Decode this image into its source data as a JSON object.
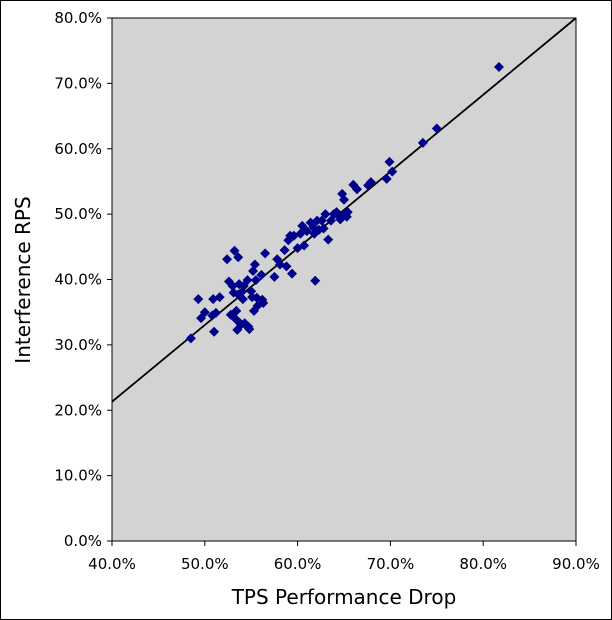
{
  "chart_data": {
    "type": "scatter",
    "title": "",
    "xlabel": "TPS Performance Drop",
    "ylabel": "Interference RPS",
    "xlim": [
      0.4,
      0.9
    ],
    "ylim": [
      0.0,
      0.8
    ],
    "x_ticks": [
      0.4,
      0.5,
      0.6,
      0.7,
      0.8,
      0.9
    ],
    "y_ticks": [
      0.0,
      0.1,
      0.2,
      0.3,
      0.4,
      0.5,
      0.6,
      0.7,
      0.8
    ],
    "x_tick_labels": [
      "40.0%",
      "50.0%",
      "60.0%",
      "70.0%",
      "80.0%",
      "90.0%"
    ],
    "y_tick_labels": [
      "0.0%",
      "10.0%",
      "20.0%",
      "30.0%",
      "40.0%",
      "50.0%",
      "60.0%",
      "70.0%",
      "80.0%"
    ],
    "grid": false,
    "plot_background": "#d3d3d3",
    "marker": "diamond",
    "marker_color": "#00008b",
    "trendline": {
      "color": "#000000",
      "x": [
        0.4,
        0.9
      ],
      "y": [
        0.213,
        0.8
      ]
    },
    "series": [
      {
        "points": [
          [
            0.485,
            0.31
          ],
          [
            0.493,
            0.37
          ],
          [
            0.496,
            0.341
          ],
          [
            0.5,
            0.35
          ],
          [
            0.508,
            0.345
          ],
          [
            0.509,
            0.37
          ],
          [
            0.51,
            0.32
          ],
          [
            0.512,
            0.349
          ],
          [
            0.516,
            0.373
          ],
          [
            0.524,
            0.431
          ],
          [
            0.526,
            0.397
          ],
          [
            0.528,
            0.346
          ],
          [
            0.53,
            0.39
          ],
          [
            0.531,
            0.38
          ],
          [
            0.532,
            0.444
          ],
          [
            0.533,
            0.34
          ],
          [
            0.534,
            0.352
          ],
          [
            0.535,
            0.323
          ],
          [
            0.536,
            0.434
          ],
          [
            0.536,
            0.377
          ],
          [
            0.537,
            0.393
          ],
          [
            0.538,
            0.333
          ],
          [
            0.539,
            0.331
          ],
          [
            0.54,
            0.381
          ],
          [
            0.541,
            0.37
          ],
          [
            0.542,
            0.39
          ],
          [
            0.543,
            0.333
          ],
          [
            0.545,
            0.329
          ],
          [
            0.546,
            0.399
          ],
          [
            0.547,
            0.328
          ],
          [
            0.548,
            0.324
          ],
          [
            0.55,
            0.382
          ],
          [
            0.551,
            0.373
          ],
          [
            0.552,
            0.413
          ],
          [
            0.553,
            0.352
          ],
          [
            0.554,
            0.423
          ],
          [
            0.555,
            0.399
          ],
          [
            0.556,
            0.372
          ],
          [
            0.557,
            0.36
          ],
          [
            0.561,
            0.407
          ],
          [
            0.562,
            0.369
          ],
          [
            0.563,
            0.364
          ],
          [
            0.565,
            0.44
          ],
          [
            0.575,
            0.404
          ],
          [
            0.578,
            0.431
          ],
          [
            0.581,
            0.423
          ],
          [
            0.586,
            0.445
          ],
          [
            0.588,
            0.42
          ],
          [
            0.59,
            0.46
          ],
          [
            0.592,
            0.467
          ],
          [
            0.594,
            0.409
          ],
          [
            0.596,
            0.467
          ],
          [
            0.6,
            0.448
          ],
          [
            0.603,
            0.47
          ],
          [
            0.605,
            0.482
          ],
          [
            0.607,
            0.452
          ],
          [
            0.61,
            0.474
          ],
          [
            0.614,
            0.487
          ],
          [
            0.617,
            0.48
          ],
          [
            0.618,
            0.47
          ],
          [
            0.619,
            0.398
          ],
          [
            0.621,
            0.49
          ],
          [
            0.623,
            0.476
          ],
          [
            0.626,
            0.49
          ],
          [
            0.628,
            0.478
          ],
          [
            0.63,
            0.5
          ],
          [
            0.633,
            0.461
          ],
          [
            0.636,
            0.49
          ],
          [
            0.639,
            0.5
          ],
          [
            0.642,
            0.503
          ],
          [
            0.645,
            0.497
          ],
          [
            0.646,
            0.492
          ],
          [
            0.648,
            0.531
          ],
          [
            0.65,
            0.522
          ],
          [
            0.651,
            0.5
          ],
          [
            0.653,
            0.496
          ],
          [
            0.654,
            0.503
          ],
          [
            0.66,
            0.545
          ],
          [
            0.664,
            0.538
          ],
          [
            0.676,
            0.544
          ],
          [
            0.679,
            0.549
          ],
          [
            0.696,
            0.554
          ],
          [
            0.699,
            0.58
          ],
          [
            0.702,
            0.565
          ],
          [
            0.735,
            0.609
          ],
          [
            0.75,
            0.631
          ],
          [
            0.817,
            0.725
          ]
        ]
      }
    ]
  }
}
